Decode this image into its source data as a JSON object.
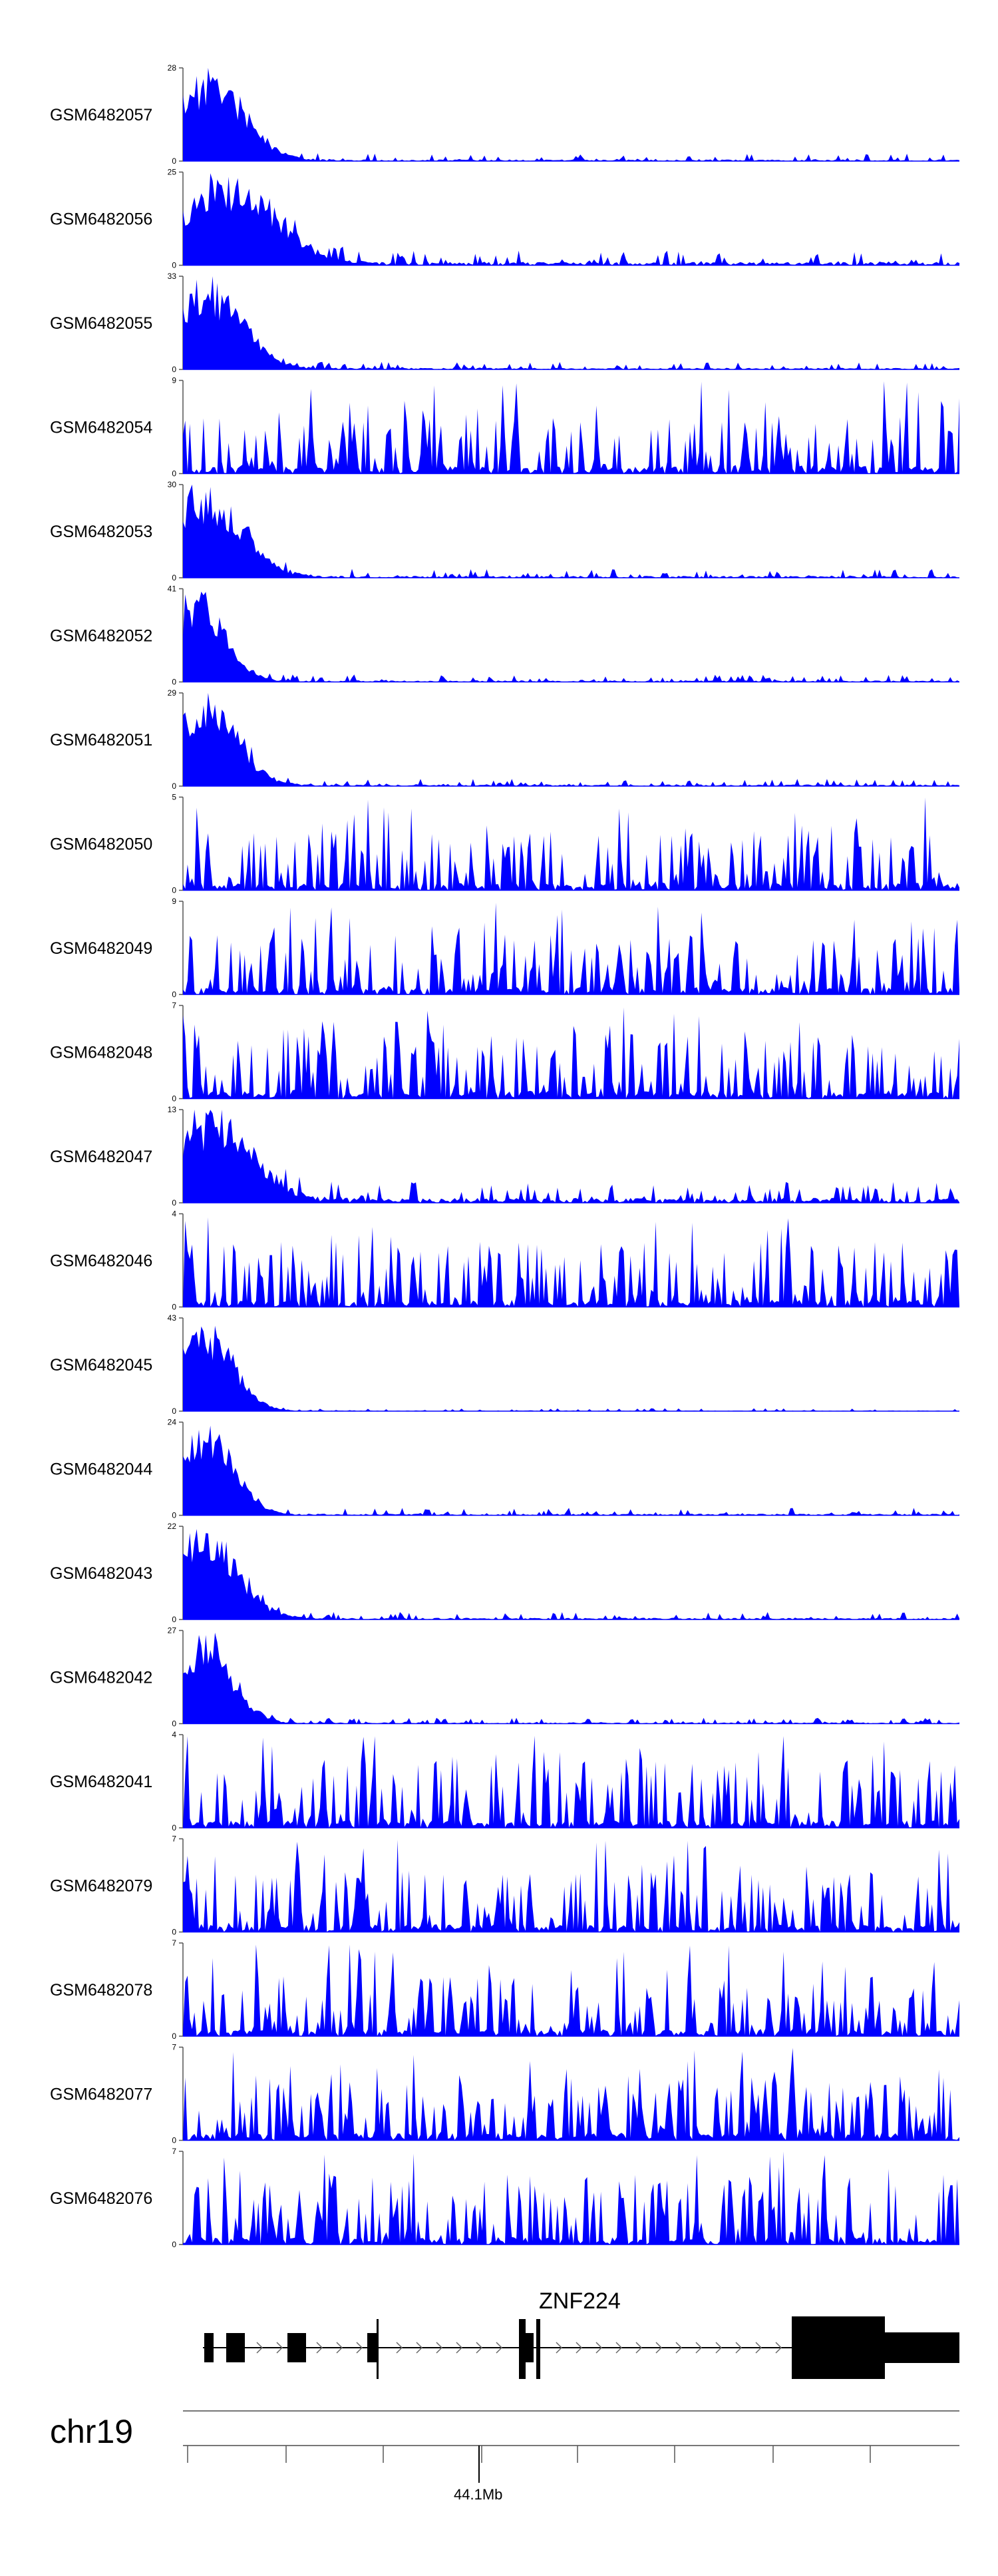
{
  "chart_data": {
    "type": "area",
    "title": "",
    "region": {
      "chromosome": "chr19",
      "tick_label": "44.1Mb"
    },
    "gene": {
      "name": "ZNF224"
    },
    "color": "#0000ff",
    "tracks": [
      {
        "name": "GSM6482057",
        "ymax": 28,
        "profile": "peak",
        "peak_center": 0.035,
        "peak_width": 0.045,
        "noise": 0.05,
        "seed": 11
      },
      {
        "name": "GSM6482056",
        "ymax": 25,
        "profile": "peak",
        "peak_center": 0.06,
        "peak_width": 0.06,
        "noise": 0.1,
        "seed": 12
      },
      {
        "name": "GSM6482055",
        "ymax": 33,
        "profile": "peak",
        "peak_center": 0.03,
        "peak_width": 0.045,
        "noise": 0.05,
        "seed": 13
      },
      {
        "name": "GSM6482054",
        "ymax": 9,
        "profile": "noise",
        "noise": 0.35,
        "seed": 14
      },
      {
        "name": "GSM6482053",
        "ymax": 30,
        "profile": "peak",
        "peak_center": 0.025,
        "peak_width": 0.05,
        "noise": 0.06,
        "seed": 15
      },
      {
        "name": "GSM6482052",
        "ymax": 41,
        "profile": "peak",
        "peak_center": 0.02,
        "peak_width": 0.035,
        "noise": 0.05,
        "seed": 16
      },
      {
        "name": "GSM6482051",
        "ymax": 29,
        "profile": "peak",
        "peak_center": 0.03,
        "peak_width": 0.04,
        "noise": 0.05,
        "seed": 17
      },
      {
        "name": "GSM6482050",
        "ymax": 5,
        "profile": "noise",
        "noise": 0.4,
        "seed": 18
      },
      {
        "name": "GSM6482049",
        "ymax": 9,
        "profile": "noise",
        "noise": 0.4,
        "seed": 19
      },
      {
        "name": "GSM6482048",
        "ymax": 7,
        "profile": "noise",
        "noise": 0.45,
        "seed": 20
      },
      {
        "name": "GSM6482047",
        "ymax": 13,
        "profile": "peak",
        "peak_center": 0.04,
        "peak_width": 0.05,
        "noise": 0.15,
        "seed": 21
      },
      {
        "name": "GSM6482046",
        "ymax": 4,
        "profile": "noise",
        "noise": 0.45,
        "seed": 22
      },
      {
        "name": "GSM6482045",
        "ymax": 43,
        "profile": "peak",
        "peak_center": 0.03,
        "peak_width": 0.035,
        "noise": 0.02,
        "seed": 23
      },
      {
        "name": "GSM6482044",
        "ymax": 24,
        "profile": "peak",
        "peak_center": 0.03,
        "peak_width": 0.035,
        "noise": 0.05,
        "seed": 24
      },
      {
        "name": "GSM6482043",
        "ymax": 22,
        "profile": "peak",
        "peak_center": 0.025,
        "peak_width": 0.045,
        "noise": 0.05,
        "seed": 25
      },
      {
        "name": "GSM6482042",
        "ymax": 27,
        "profile": "peak",
        "peak_center": 0.03,
        "peak_width": 0.035,
        "noise": 0.04,
        "seed": 26
      },
      {
        "name": "GSM6482041",
        "ymax": 4,
        "profile": "noise",
        "noise": 0.5,
        "seed": 27
      },
      {
        "name": "GSM6482079",
        "ymax": 7,
        "profile": "noise",
        "noise": 0.4,
        "seed": 28
      },
      {
        "name": "GSM6482078",
        "ymax": 7,
        "profile": "noise",
        "noise": 0.4,
        "seed": 29
      },
      {
        "name": "GSM6482077",
        "ymax": 7,
        "profile": "noise",
        "noise": 0.45,
        "seed": 30
      },
      {
        "name": "GSM6482076",
        "ymax": 7,
        "profile": "noise",
        "noise": 0.5,
        "seed": 31
      }
    ]
  }
}
